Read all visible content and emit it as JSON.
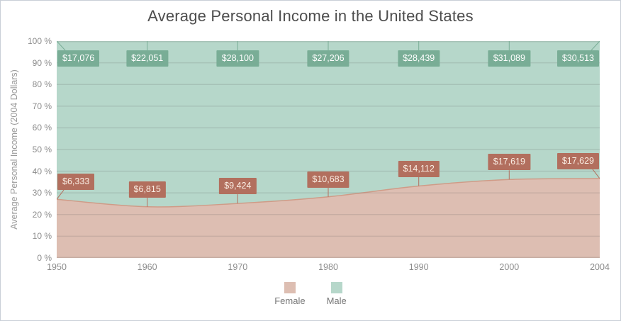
{
  "title": "Average Personal Income in the United States",
  "chart_data": {
    "type": "area",
    "stacking": "percent",
    "title": "Average Personal Income in the United States",
    "ylabel": "Average Personal Income (2004 Dollars)",
    "xlabel": "",
    "categories": [
      "1950",
      "1960",
      "1970",
      "1980",
      "1990",
      "2000",
      "2004"
    ],
    "series": [
      {
        "name": "Female",
        "values": [
          6333,
          6815,
          9424,
          10683,
          14112,
          17619,
          17629
        ],
        "labels": [
          "$6,333",
          "$6,815",
          "$9,424",
          "$10,683",
          "$14,112",
          "$17,619",
          "$17,629"
        ],
        "fill": "#ddbeb2",
        "edge": "#cf9b87",
        "label_bg": "#b26f5e"
      },
      {
        "name": "Male",
        "values": [
          17076,
          22051,
          28100,
          27206,
          28439,
          31089,
          30513
        ],
        "labels": [
          "$17,076",
          "$22,051",
          "$28,100",
          "$27,206",
          "$28,439",
          "$31,089",
          "$30,513"
        ],
        "fill": "#b6d7ca",
        "edge": "#79ad96",
        "label_bg": "#79ad96"
      }
    ],
    "y_ticks": [
      "0 %",
      "10 %",
      "20 %",
      "30 %",
      "40 %",
      "50 %",
      "60 %",
      "70 %",
      "80 %",
      "90 %",
      "100 %"
    ],
    "ylim": [
      0,
      100
    ],
    "grid": true,
    "legend_position": "bottom"
  },
  "colors": {
    "grid_line": "rgba(85,85,85,0.16)",
    "title_text": "#4d4d4d",
    "axis_text": "#8c8c8c",
    "axis_title_text": "#9a9a9a",
    "frame_border": "#c9cfd7"
  }
}
